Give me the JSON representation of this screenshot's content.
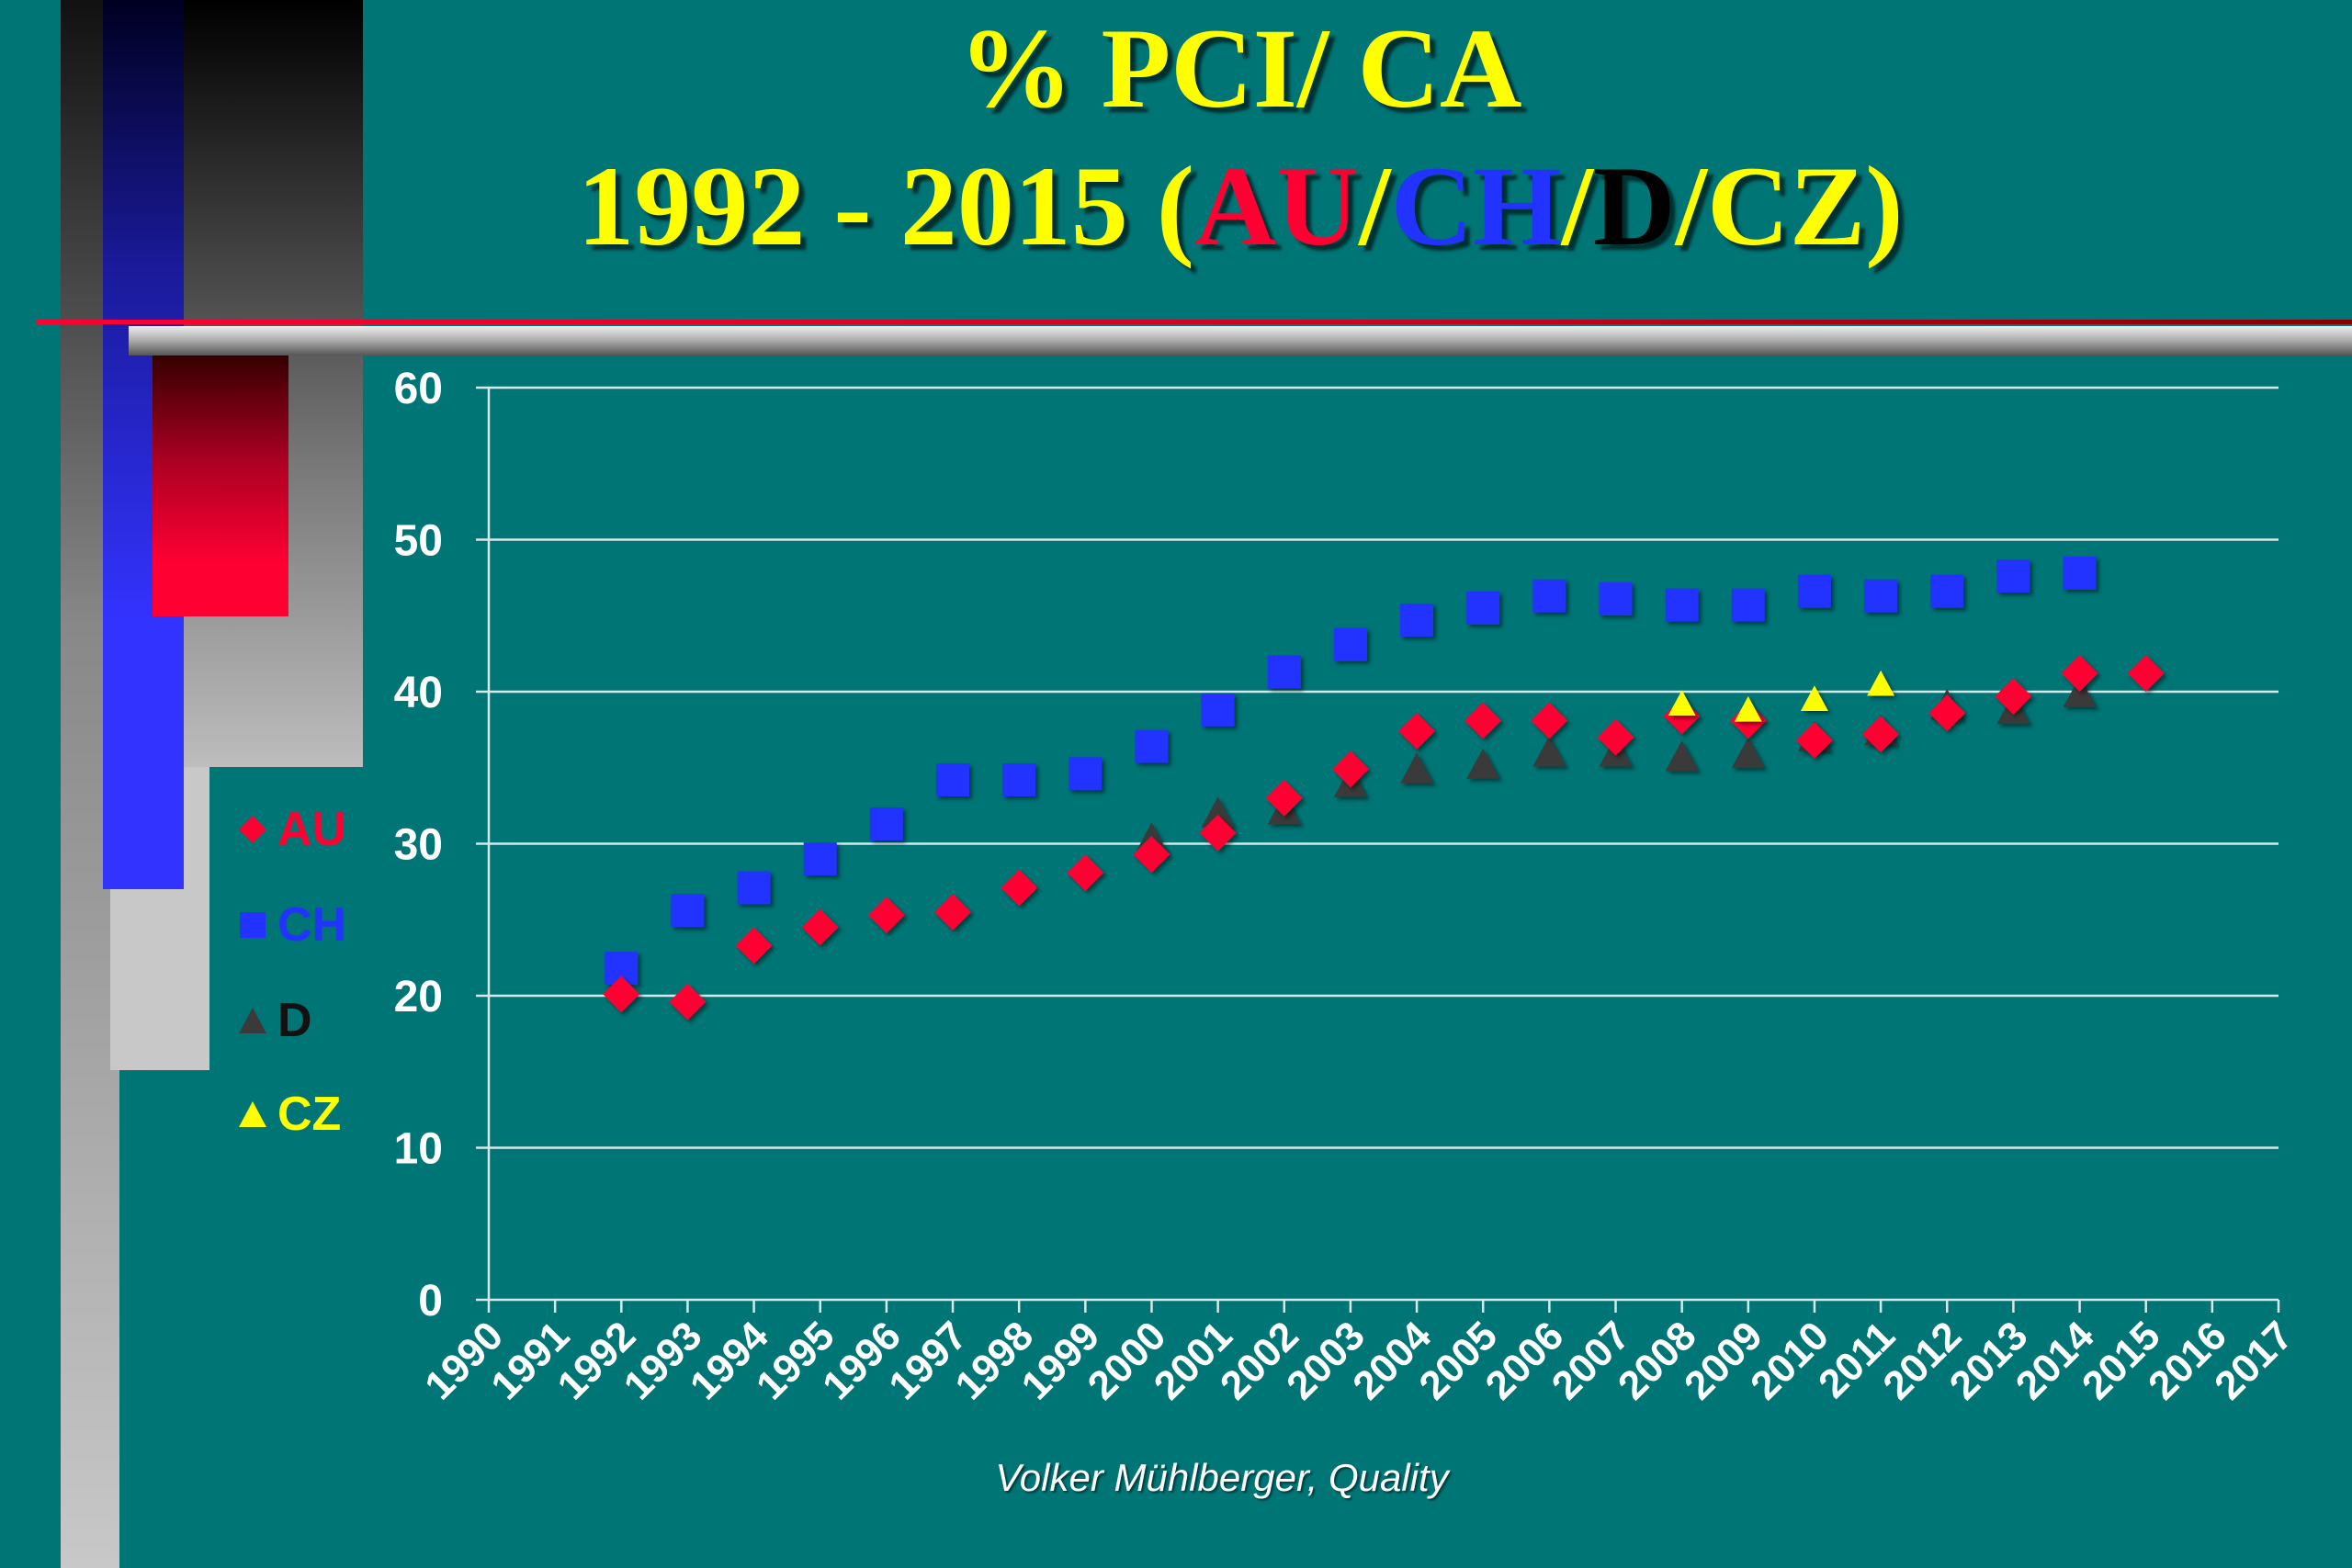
{
  "title": {
    "line1": "%  PCI/ CA",
    "line2_prefix": "1992 - 2015  (",
    "au": "AU",
    "sep1": "/",
    "ch": "CH",
    "sep2": "/",
    "d": "D",
    "sep3": "/",
    "cz": "CZ",
    "suffix": ")"
  },
  "legend": [
    {
      "key": "AU",
      "label": "AU",
      "color": "#ff0033",
      "marker": "diamond"
    },
    {
      "key": "CH",
      "label": "CH",
      "color": "#2233ff",
      "marker": "square"
    },
    {
      "key": "D",
      "label": "D",
      "color": "#3a3a3a",
      "marker": "triangle"
    },
    {
      "key": "CZ",
      "label": "CZ",
      "color": "#ffff00",
      "marker": "triangle"
    }
  ],
  "credit": "Volker Mühlberger, Quality",
  "chart_data": {
    "type": "scatter",
    "xlim": [
      1990,
      2017
    ],
    "ylim": [
      0,
      60
    ],
    "yticks": [
      0,
      10,
      20,
      30,
      40,
      50,
      60
    ],
    "xticks": [
      1990,
      1991,
      1992,
      1993,
      1994,
      1995,
      1996,
      1997,
      1998,
      1999,
      2000,
      2001,
      2002,
      2003,
      2004,
      2005,
      2006,
      2007,
      2008,
      2009,
      2010,
      2011,
      2012,
      2013,
      2014,
      2015,
      2016,
      2017
    ],
    "grid": true,
    "legend_position": "left",
    "series": [
      {
        "name": "CH",
        "color": "#2233ff",
        "marker": "square",
        "x": [
          1992,
          1993,
          1994,
          1995,
          1996,
          1997,
          1998,
          1999,
          2000,
          2001,
          2002,
          2003,
          2004,
          2005,
          2006,
          2007,
          2008,
          2009,
          2010,
          2011,
          2012,
          2013,
          2014
        ],
        "y": [
          21.8,
          25.6,
          27.1,
          29,
          31.3,
          34.2,
          34.2,
          34.6,
          36.4,
          38.8,
          41.3,
          43.1,
          44.7,
          45.5,
          46.3,
          46.1,
          45.7,
          45.7,
          46.6,
          46.3,
          46.6,
          47.6,
          47.8
        ]
      },
      {
        "name": "D",
        "color": "#3a3a3a",
        "marker": "triangle",
        "x": [
          2000,
          2001,
          2002,
          2003,
          2004,
          2005,
          2006,
          2007,
          2008,
          2009,
          2010,
          2011,
          2012,
          2013,
          2014
        ],
        "y": [
          30.3,
          32,
          32.2,
          34,
          34.9,
          35.2,
          36,
          36,
          35.7,
          35.9,
          37,
          37.4,
          39.1,
          38.8,
          39.9
        ]
      },
      {
        "name": "AU",
        "color": "#ff0033",
        "marker": "diamond",
        "x": [
          1992,
          1993,
          1994,
          1995,
          1996,
          1997,
          1998,
          1999,
          2000,
          2001,
          2002,
          2003,
          2004,
          2005,
          2006,
          2007,
          2008,
          2009,
          2010,
          2011,
          2012,
          2013,
          2014,
          2015
        ],
        "y": [
          20.1,
          19.6,
          23.3,
          24.5,
          25.3,
          25.5,
          27.1,
          28.1,
          29.3,
          30.7,
          33,
          34.9,
          37.4,
          38.1,
          38.1,
          37,
          38.4,
          38.1,
          36.8,
          37.2,
          38.6,
          39.7,
          41.2,
          41.2
        ]
      },
      {
        "name": "CZ",
        "color": "#ffff00",
        "marker": "triangle",
        "x": [
          2008,
          2009,
          2010,
          2011
        ],
        "y": [
          39.2,
          38.8,
          39.5,
          40.5
        ]
      }
    ]
  }
}
